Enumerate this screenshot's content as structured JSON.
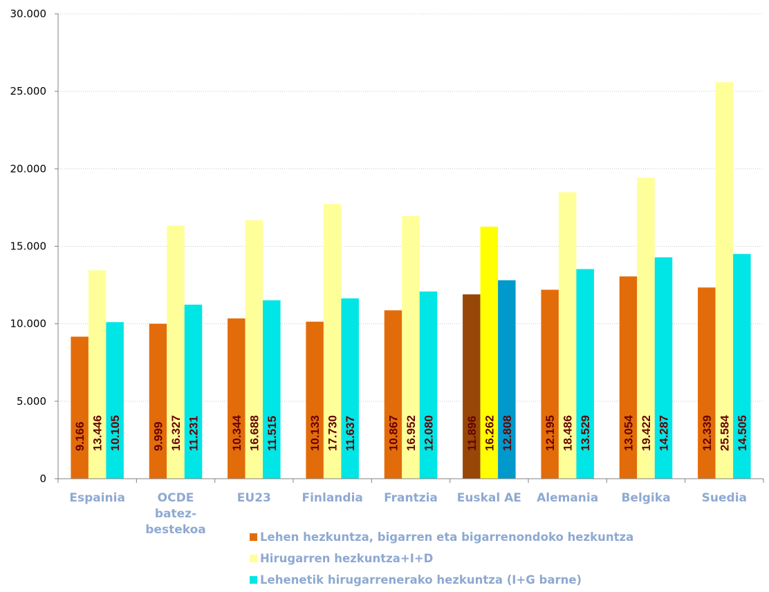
{
  "chart_data": {
    "type": "bar",
    "categories": [
      [
        "Espainia"
      ],
      [
        "OCDE",
        "batez-",
        "bestekoa"
      ],
      [
        "EU23"
      ],
      [
        "Finlandia"
      ],
      [
        "Frantzia"
      ],
      [
        "Euskal AE"
      ],
      [
        "Alemania"
      ],
      [
        "Belgika"
      ],
      [
        "Suedia"
      ]
    ],
    "series": [
      {
        "name": "Lehen hezkuntza, bigarren eta bigarrenondoko hezkuntza",
        "color": "#e36c0a",
        "values": [
          9166,
          9999,
          10344,
          10133,
          10867,
          11896,
          12195,
          13054,
          12339
        ],
        "labels": [
          "9.166",
          "9.999",
          "10.344",
          "10.133",
          "10.867",
          "11.896",
          "12.195",
          "13.054",
          "12.339"
        ]
      },
      {
        "name": "Hirugarren hezkuntza+I+D",
        "color": "#ffff99",
        "values": [
          13446,
          16327,
          16688,
          17730,
          16952,
          16262,
          18486,
          19422,
          25584
        ],
        "labels": [
          "13.446",
          "16.327",
          "16.688",
          "17.730",
          "16.952",
          "16.262",
          "18.486",
          "19.422",
          "25.584"
        ]
      },
      {
        "name": "Lehenetik hirugarrenerako hezkuntza (I+G barne)",
        "color": "#00e5e5",
        "values": [
          10105,
          11231,
          11515,
          11637,
          12080,
          12808,
          13529,
          14287,
          14505
        ],
        "labels": [
          "10.105",
          "11.231",
          "11.515",
          "11.637",
          "12.080",
          "12.808",
          "13.529",
          "14.287",
          "14.505"
        ]
      }
    ],
    "highlight": {
      "category_index": 5,
      "colors": [
        "#974706",
        "#ffff00",
        "#0099cc"
      ]
    },
    "ylim": [
      0,
      30000
    ],
    "yticks": [
      0,
      5000,
      10000,
      15000,
      20000,
      25000,
      30000
    ],
    "ytick_labels": [
      "0",
      "5.000",
      "10.000",
      "15.000",
      "20.000",
      "25.000",
      "30.000"
    ],
    "grid": true,
    "legend_position": "bottom",
    "xlabel": "",
    "ylabel": "",
    "title": ""
  }
}
